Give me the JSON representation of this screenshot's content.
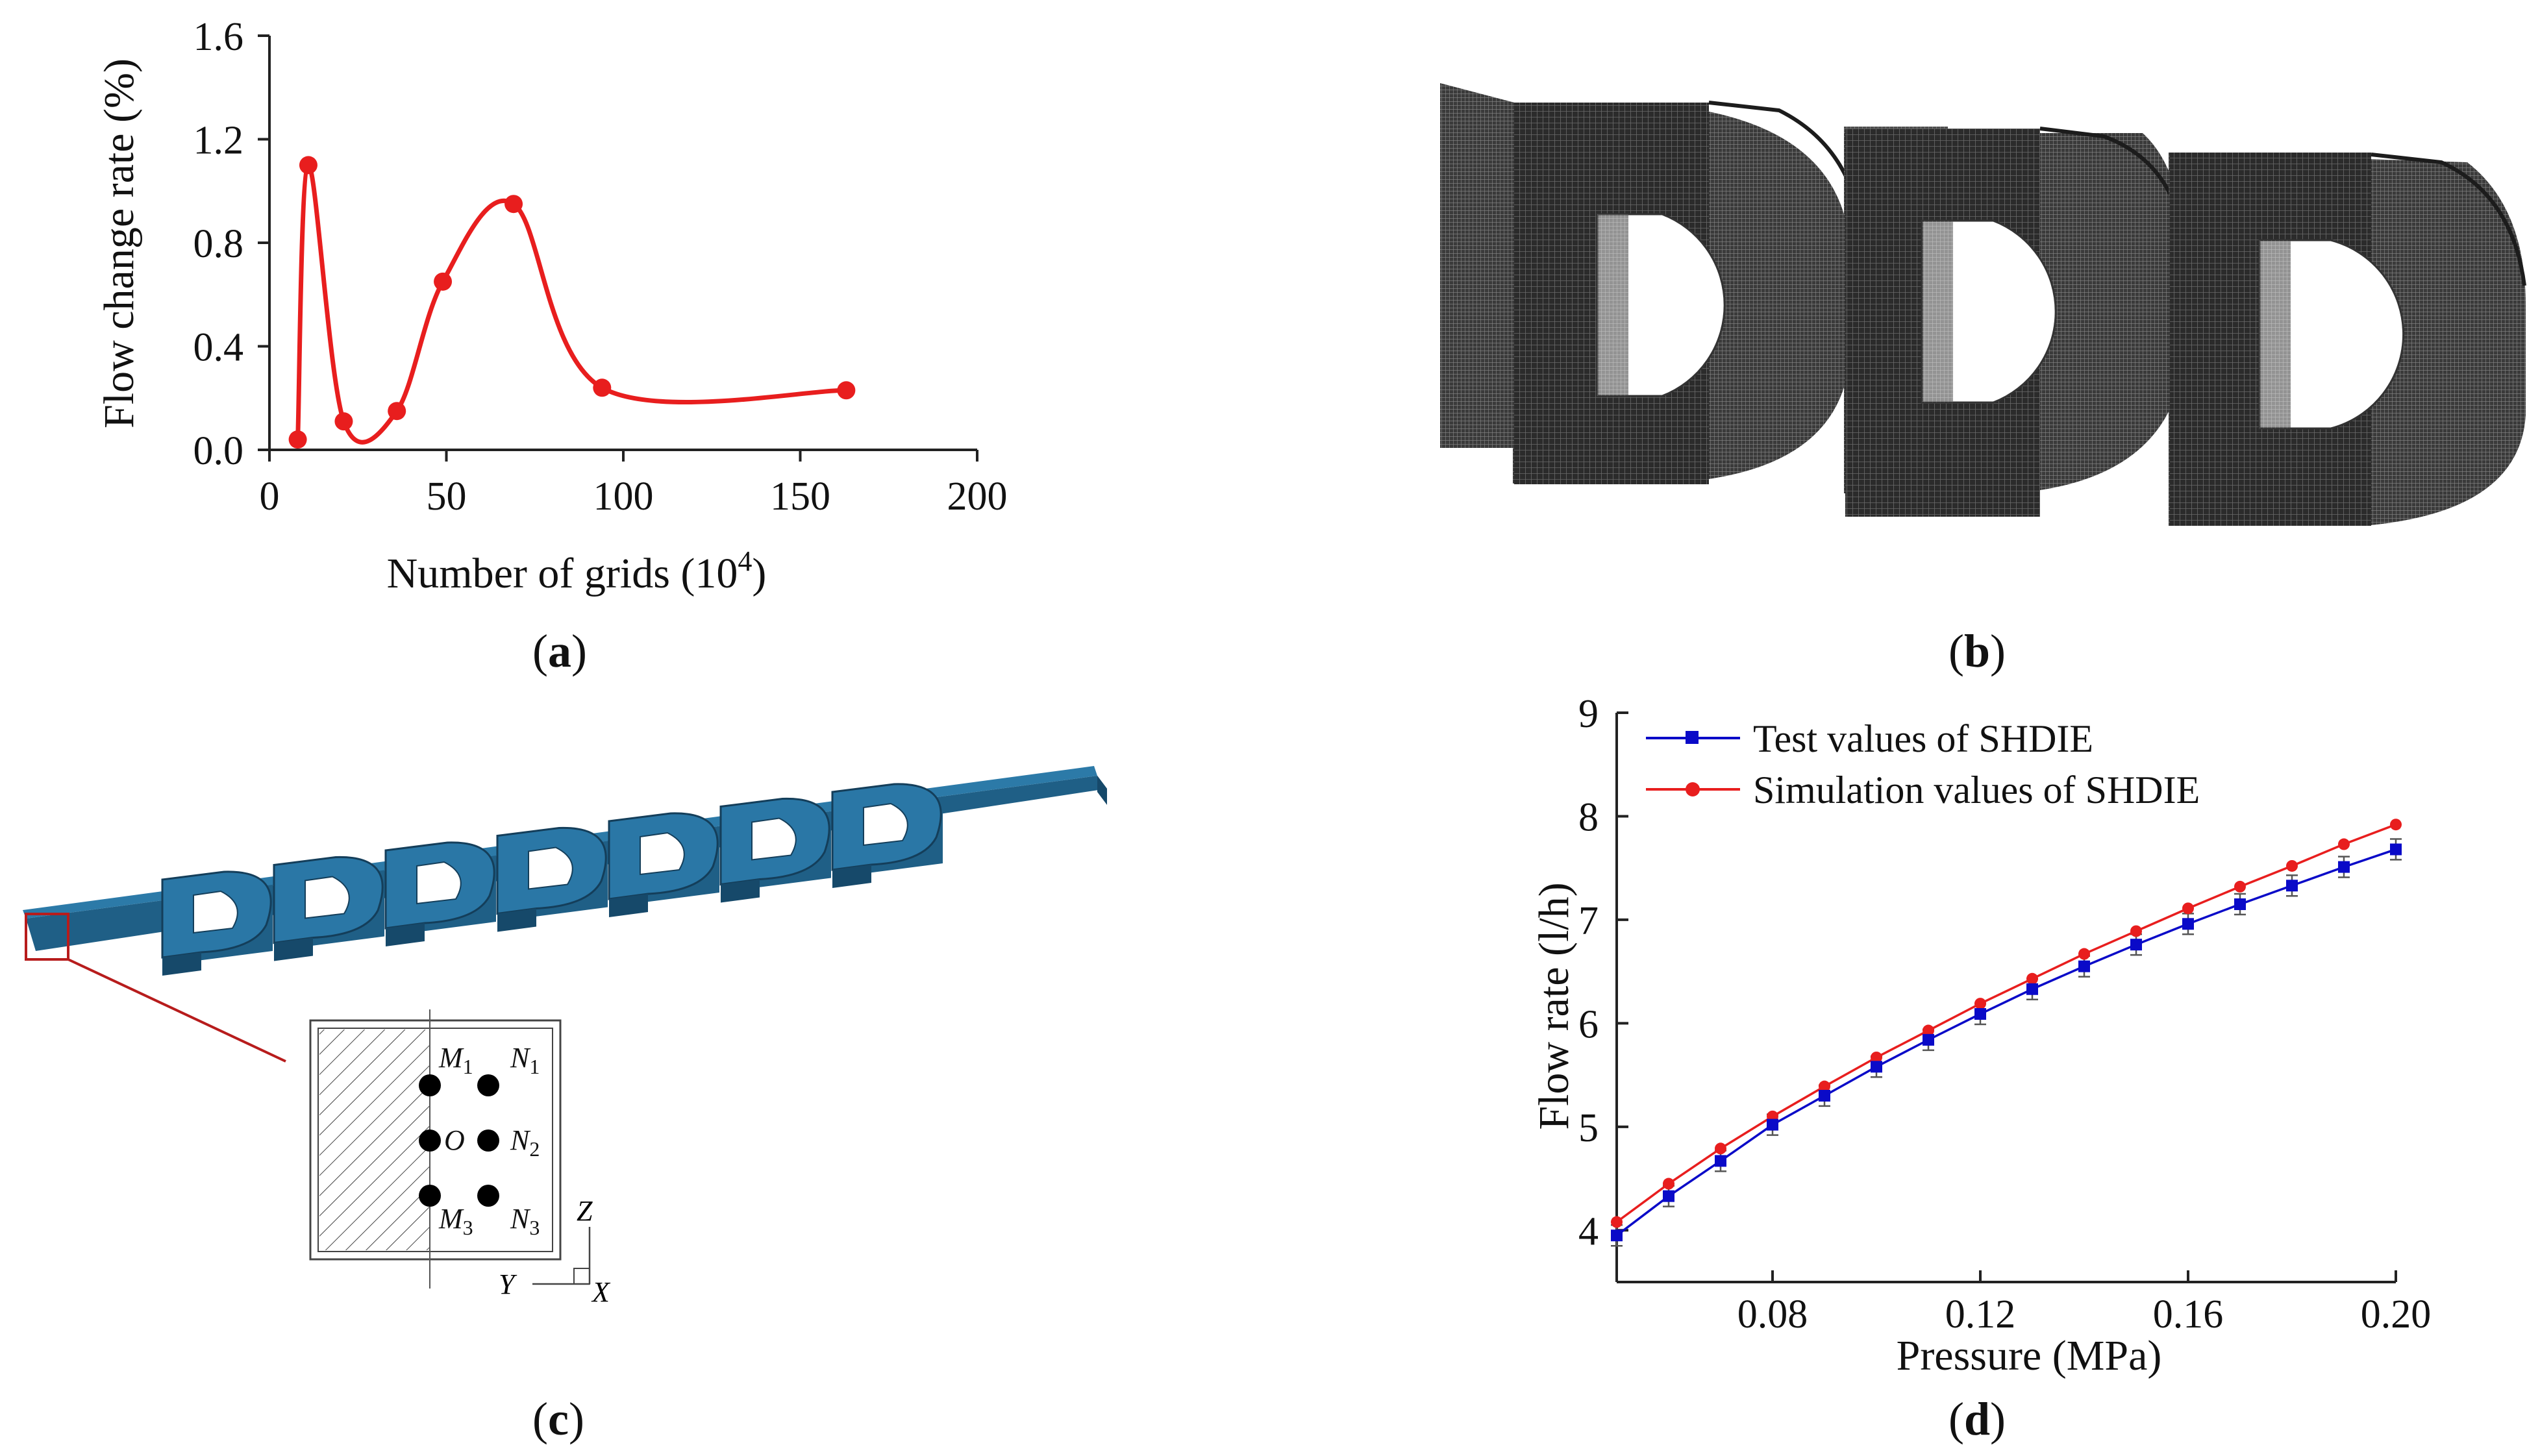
{
  "captions": {
    "a": "a",
    "b": "b",
    "c": "c",
    "d": "d"
  },
  "colors": {
    "red": "#e81e1e",
    "blue": "#0a0ac8",
    "pipe": "#1f5f86",
    "mesh": "#2c2c2c",
    "frame": "#b71c1c"
  },
  "chart_data": [
    {
      "type": "line",
      "panel": "a",
      "title": "",
      "xlabel": "Number of grids (10",
      "xlabel_sup": "4",
      "xlabel_end": ")",
      "ylabel": "Flow  change rate (%)",
      "xlim": [
        0,
        200
      ],
      "ylim": [
        0.0,
        1.6
      ],
      "xticks": [
        "0",
        "50",
        "100",
        "150",
        "200"
      ],
      "yticks": [
        "0.0",
        "0.4",
        "0.8",
        "1.2",
        "1.6"
      ],
      "xtick_values": [
        0,
        50,
        100,
        150,
        200
      ],
      "ytick_values": [
        0.0,
        0.4,
        0.8,
        1.2,
        1.6
      ],
      "series": [
        {
          "name": "Flow change rate",
          "x": [
            8,
            11,
            21,
            36,
            49,
            69,
            94,
            163
          ],
          "values": [
            0.04,
            1.1,
            0.11,
            0.15,
            0.65,
            0.95,
            0.24,
            0.23
          ]
        }
      ]
    },
    {
      "type": "line",
      "panel": "d",
      "title": "",
      "xlabel": "Pressure (MPa)",
      "ylabel": "Flow rate (l/h)",
      "xlim": [
        0.05,
        0.2
      ],
      "ylim": [
        3.5,
        9
      ],
      "xticks": [
        "0.08",
        "0.12",
        "0.16",
        "0.20"
      ],
      "yticks": [
        "4",
        "5",
        "6",
        "7",
        "8",
        "9"
      ],
      "xtick_values": [
        0.08,
        0.12,
        0.16,
        0.2
      ],
      "ytick_values": [
        4,
        5,
        6,
        7,
        8,
        9
      ],
      "legend_position": "top-left",
      "x": [
        0.05,
        0.06,
        0.07,
        0.08,
        0.09,
        0.1,
        0.11,
        0.12,
        0.13,
        0.14,
        0.15,
        0.16,
        0.17,
        0.18,
        0.19,
        0.2
      ],
      "series": [
        {
          "name": "Test values of SHDIE",
          "marker": "square",
          "values": [
            3.95,
            4.33,
            4.67,
            5.02,
            5.3,
            5.58,
            5.84,
            6.09,
            6.33,
            6.55,
            6.76,
            6.96,
            7.15,
            7.33,
            7.51,
            7.68
          ],
          "error": 0.1
        },
        {
          "name": "Simulation values of SHDIE",
          "marker": "circle",
          "values": [
            4.08,
            4.45,
            4.79,
            5.1,
            5.39,
            5.67,
            5.93,
            6.19,
            6.43,
            6.67,
            6.89,
            7.11,
            7.32,
            7.52,
            7.73,
            7.92
          ]
        }
      ]
    }
  ],
  "panel_c": {
    "points": [
      {
        "id": "M1",
        "letter": "M",
        "sub": "1"
      },
      {
        "id": "N1",
        "letter": "N",
        "sub": "1"
      },
      {
        "id": "O",
        "letter": "O",
        "sub": ""
      },
      {
        "id": "N2",
        "letter": "N",
        "sub": "2"
      },
      {
        "id": "M3",
        "letter": "M",
        "sub": "3"
      },
      {
        "id": "N3",
        "letter": "N",
        "sub": "3"
      }
    ],
    "axes": {
      "z": "Z",
      "y": "Y",
      "x": "X"
    }
  }
}
